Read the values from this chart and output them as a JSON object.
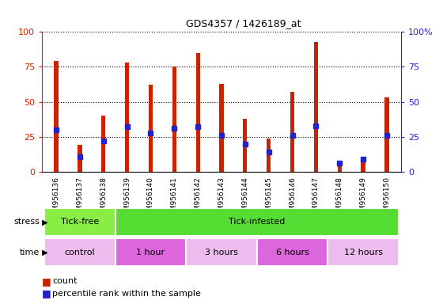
{
  "title": "GDS4357 / 1426189_at",
  "samples": [
    "GSM956136",
    "GSM956137",
    "GSM956138",
    "GSM956139",
    "GSM956140",
    "GSM956141",
    "GSM956142",
    "GSM956143",
    "GSM956144",
    "GSM956145",
    "GSM956146",
    "GSM956147",
    "GSM956148",
    "GSM956149",
    "GSM956150"
  ],
  "counts": [
    79,
    19,
    40,
    78,
    62,
    75,
    85,
    63,
    38,
    24,
    57,
    93,
    6,
    9,
    53
  ],
  "percentile": [
    30,
    11,
    22,
    32,
    28,
    31,
    32,
    26,
    20,
    14,
    26,
    33,
    6,
    9,
    26
  ],
  "bar_color": "#cc2200",
  "dot_color": "#2222cc",
  "ylim": [
    0,
    100
  ],
  "yticks": [
    0,
    25,
    50,
    75,
    100
  ],
  "grid_color": "black",
  "xtick_bg": "#d8d8d8",
  "stress_groups": [
    {
      "label": "Tick-free",
      "start": 0,
      "end": 3,
      "color": "#88ee44"
    },
    {
      "label": "Tick-infested",
      "start": 3,
      "end": 15,
      "color": "#55dd33"
    }
  ],
  "time_groups": [
    {
      "label": "control",
      "start": 0,
      "end": 3,
      "color": "#eebbee"
    },
    {
      "label": "1 hour",
      "start": 3,
      "end": 6,
      "color": "#dd66dd"
    },
    {
      "label": "3 hours",
      "start": 6,
      "end": 9,
      "color": "#eebbee"
    },
    {
      "label": "6 hours",
      "start": 9,
      "end": 12,
      "color": "#dd66dd"
    },
    {
      "label": "12 hours",
      "start": 12,
      "end": 15,
      "color": "#eebbee"
    }
  ],
  "legend_count_label": "count",
  "legend_pct_label": "percentile rank within the sample",
  "stress_label": "stress",
  "time_label": "time",
  "ylabel_left_color": "#cc2200",
  "ylabel_right_color": "#2222cc",
  "plot_bg": "#ffffff"
}
